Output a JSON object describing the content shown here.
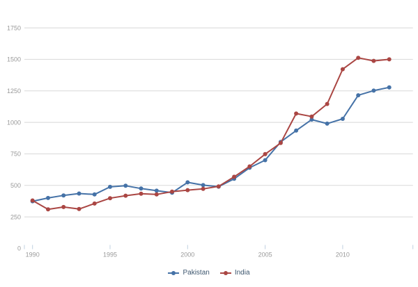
{
  "chart_data": {
    "type": "line",
    "title": "",
    "xlabel": "",
    "ylabel": "",
    "x": [
      1990,
      1991,
      1992,
      1993,
      1994,
      1995,
      1996,
      1997,
      1998,
      1999,
      2000,
      2001,
      2002,
      2003,
      2004,
      2005,
      2006,
      2007,
      2008,
      2009,
      2010,
      2011,
      2012,
      2013
    ],
    "series": [
      {
        "name": "Pakistan",
        "color": "#4572A7",
        "values": [
          374,
          400,
          420,
          435,
          428,
          488,
          497,
          475,
          458,
          442,
          524,
          502,
          490,
          552,
          640,
          700,
          845,
          935,
          1022,
          990,
          1028,
          1215,
          1252,
          1278
        ]
      },
      {
        "name": "India",
        "color": "#AA4643",
        "values": [
          380,
          310,
          328,
          312,
          356,
          398,
          418,
          434,
          428,
          450,
          462,
          472,
          492,
          568,
          650,
          748,
          836,
          1070,
          1046,
          1146,
          1422,
          1512,
          1488,
          1500
        ]
      }
    ],
    "ylim": [
      0,
      1750
    ],
    "yticks": [
      0,
      250,
      500,
      750,
      1000,
      1250,
      1500,
      1750
    ],
    "xticks": [
      1990,
      1995,
      2000,
      2005,
      2010
    ],
    "grid": "horizontal-only",
    "legend_position": "bottom-center",
    "style": {
      "background": "#FFFFFF",
      "grid_color": "#D8D8D8",
      "tick_color": "#C0D0E0",
      "axis_label_color": "#999999",
      "legend_text_color": "#3E576F"
    }
  }
}
